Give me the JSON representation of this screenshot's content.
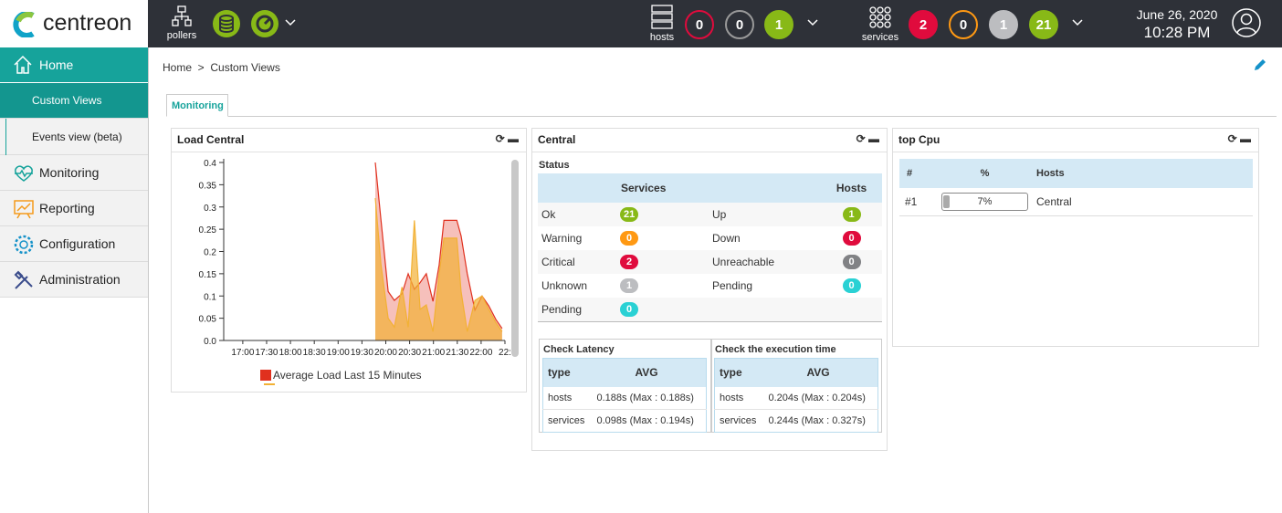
{
  "header": {
    "logo": "centreon",
    "pollers": "pollers",
    "hosts": {
      "label": "hosts",
      "counts": [
        0,
        0,
        1
      ]
    },
    "services": {
      "label": "services",
      "counts": [
        2,
        0,
        1,
        21
      ]
    },
    "date": "June 26, 2020",
    "time": "10:28 PM"
  },
  "menu": [
    "Home",
    "Custom Views",
    "Events view (beta)",
    "Monitoring",
    "Reporting",
    "Configuration",
    "Administration"
  ],
  "breadcrumb": [
    "Home",
    "Custom Views"
  ],
  "tab": "Monitoring",
  "widgets": [
    {
      "title": "Load Central",
      "chart": {
        "type": "area",
        "x": [
          19.78,
          19.9,
          20.05,
          20.18,
          20.34,
          20.47,
          20.6,
          20.72,
          20.85,
          20.99,
          21.12,
          21.22,
          21.49,
          21.58,
          21.71,
          21.87,
          22.02,
          22.16,
          22.31,
          22.44
        ],
        "series": [
          {
            "name": "Average Load Last 15 Minutes",
            "color": "#e0301e",
            "values": [
              0.4,
              0.27,
              0.11,
              0.09,
              0.105,
              0.15,
              0.115,
              0.13,
              0.15,
              0.088,
              0.17,
              0.27,
              0.27,
              0.235,
              0.15,
              0.068,
              0.1,
              0.078,
              0.047,
              0.027
            ]
          },
          {
            "color": "#f2b134",
            "values": [
              0.32,
              0.17,
              0.05,
              0.03,
              0.12,
              0.03,
              0.27,
              0.07,
              0.08,
              0.02,
              0.15,
              0.23,
              0.23,
              0.11,
              0.02,
              0.09,
              0.1,
              0.07,
              0.04,
              0.02
            ]
          }
        ],
        "xlim": [
          16.6,
          22.5
        ],
        "xticks": [
          {
            "value": 17,
            "label": "17:00"
          },
          {
            "value": 17.5,
            "label": "17:30"
          },
          {
            "value": 18,
            "label": "18:00"
          },
          {
            "value": 18.5,
            "label": "18:30"
          },
          {
            "value": 19,
            "label": "19:00"
          },
          {
            "value": 19.5,
            "label": "19:30"
          },
          {
            "value": 20,
            "label": "20:00"
          },
          {
            "value": 20.5,
            "label": "20:30"
          },
          {
            "value": 21,
            "label": "21:00"
          },
          {
            "value": 21.5,
            "label": "21:30"
          },
          {
            "value": 22,
            "label": "22:00"
          },
          {
            "value": 22.5,
            "label": "22:"
          }
        ],
        "ylim": [
          0,
          0.4
        ],
        "yticks": [
          {
            "value": 0,
            "label": "0.0"
          },
          0.05,
          0.1,
          0.15,
          0.2,
          0.25,
          0.3,
          0.35,
          0.4
        ]
      }
    },
    {
      "title": "Central",
      "status": {
        "title": "Status",
        "columns": [
          "Services",
          "Hosts"
        ],
        "rows": [
          [
            "Ok",
            21,
            "Up",
            1
          ],
          [
            "Warning",
            0,
            "Down",
            0
          ],
          [
            "Critical",
            2,
            "Unreachable",
            0
          ],
          [
            "Unknown",
            1,
            "Pending",
            0
          ],
          [
            "Pending",
            0
          ]
        ]
      },
      "latency": {
        "title": "Check Latency",
        "columns": [
          "type",
          "AVG"
        ],
        "rows": [
          [
            "hosts",
            "0.188s (Max : 0.188s)"
          ],
          [
            "services",
            "0.098s (Max : 0.194s)"
          ]
        ]
      },
      "execution": {
        "title": "Check the execution time",
        "columns": [
          "type",
          "AVG"
        ],
        "rows": [
          [
            "hosts",
            "0.204s (Max : 0.204s)"
          ],
          [
            "services",
            "0.244s (Max : 0.327s)"
          ]
        ]
      }
    },
    {
      "title": "top Cpu",
      "table": {
        "columns": [
          "#",
          "%",
          "Hosts"
        ],
        "rows": [
          {
            "rank": "#1",
            "value": 7,
            "label": "7%",
            "host": "Central"
          }
        ]
      }
    }
  ]
}
